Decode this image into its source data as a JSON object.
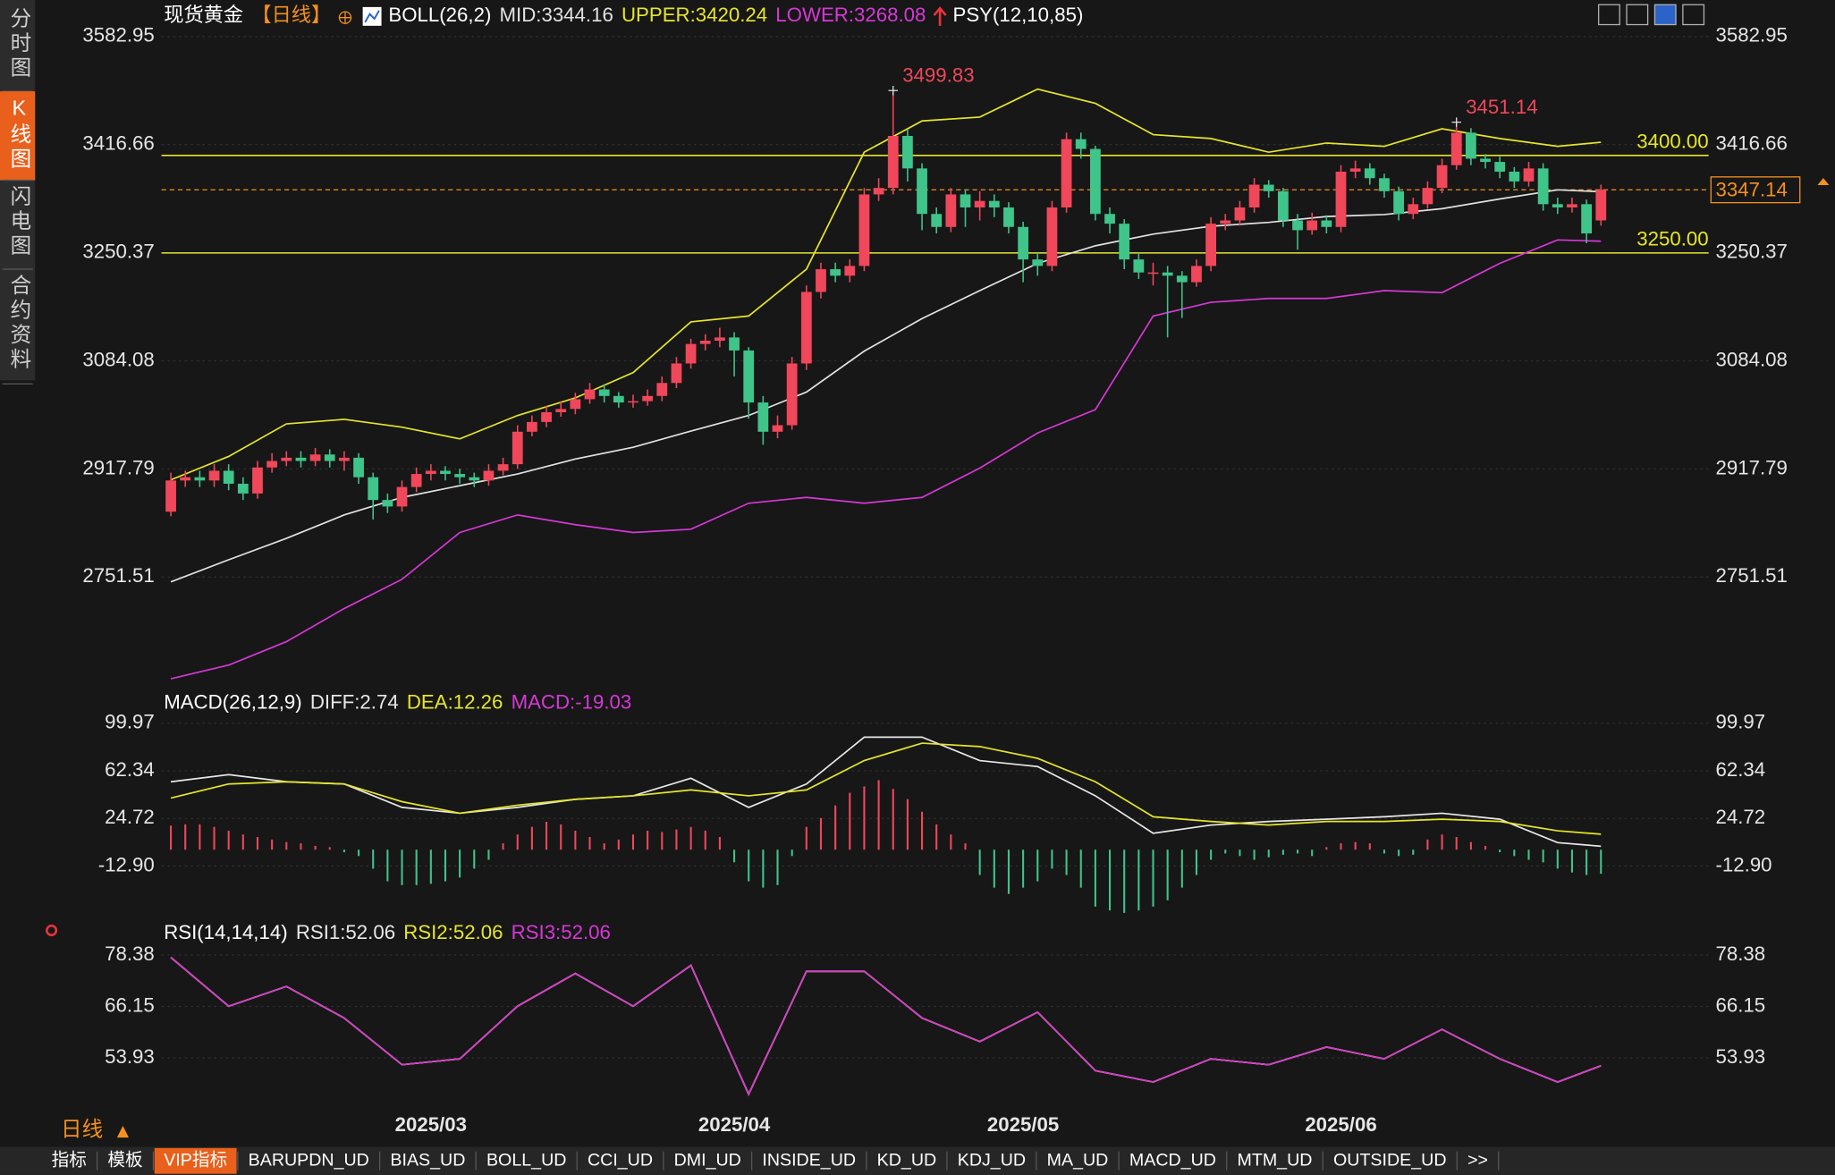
{
  "sidebar": [
    {
      "label": "分时图",
      "active": false
    },
    {
      "label": "K线图",
      "active": true
    },
    {
      "label": "闪电图",
      "active": false
    },
    {
      "label": "合约资料",
      "active": false
    }
  ],
  "period_button": "日线",
  "tabs": [
    {
      "label": "指标",
      "active": false
    },
    {
      "label": "模板",
      "active": false
    },
    {
      "label": "VIP指标",
      "active": true
    },
    {
      "label": "BARUPDN_UD",
      "active": false
    },
    {
      "label": "BIAS_UD",
      "active": false
    },
    {
      "label": "BOLL_UD",
      "active": false
    },
    {
      "label": "CCI_UD",
      "active": false
    },
    {
      "label": "DMI_UD",
      "active": false
    },
    {
      "label": "INSIDE_UD",
      "active": false
    },
    {
      "label": "KD_UD",
      "active": false
    },
    {
      "label": "KDJ_UD",
      "active": false
    },
    {
      "label": "MA_UD",
      "active": false
    },
    {
      "label": "MACD_UD",
      "active": false
    },
    {
      "label": "MTM_UD",
      "active": false
    },
    {
      "label": "OUTSIDE_UD",
      "active": false
    },
    {
      "label": ">>",
      "active": false
    }
  ],
  "chart_data": [
    {
      "type": "candlestick",
      "title": "现货黄金",
      "period": "【日线】",
      "indicator": "BOLL(26,2)",
      "extra_indicator": "PSY(12,10,85)",
      "categories": [
        null,
        null,
        null,
        null,
        null,
        null,
        null,
        null,
        null,
        null,
        null,
        null,
        null,
        null,
        null,
        null,
        null,
        null,
        "2025/03",
        null,
        null,
        null,
        null,
        null,
        null,
        null,
        null,
        null,
        null,
        null,
        null,
        null,
        null,
        null,
        null,
        null,
        null,
        null,
        null,
        "2025/04",
        null,
        null,
        null,
        null,
        null,
        null,
        null,
        null,
        null,
        null,
        null,
        null,
        null,
        null,
        null,
        null,
        null,
        null,
        null,
        "2025/05",
        null,
        null,
        null,
        null,
        null,
        null,
        null,
        null,
        null,
        null,
        null,
        null,
        null,
        null,
        null,
        null,
        null,
        null,
        null,
        null,
        null,
        "2025/06",
        null,
        null,
        null,
        null,
        null,
        null,
        null,
        null,
        null,
        null,
        null,
        null,
        null,
        null,
        null,
        null,
        null,
        null
      ],
      "open": [
        2852,
        2900,
        2905,
        2900,
        2915,
        2895,
        2880,
        2920,
        2930,
        2935,
        2930,
        2940,
        2930,
        2935,
        2905,
        2870,
        2860,
        2890,
        2910,
        2915,
        2910,
        2905,
        2900,
        2915,
        2925,
        2975,
        2990,
        3005,
        3010,
        3025,
        3040,
        3030,
        3020,
        3022,
        3030,
        3050,
        3080,
        3110,
        3115,
        3120,
        3100,
        3020,
        2975,
        2985,
        3080,
        3190,
        3225,
        3215,
        3230,
        3340,
        3350,
        3430,
        3380,
        3310,
        3290,
        3340,
        3320,
        3330,
        3320,
        3290,
        3240,
        3230,
        3320,
        3425,
        3410,
        3310,
        3295,
        3240,
        3220,
        3220,
        3215,
        3205,
        3230,
        3295,
        3300,
        3320,
        3355,
        3345,
        3300,
        3285,
        3300,
        3290,
        3375,
        3380,
        3365,
        3345,
        3310,
        3325,
        3350,
        3385,
        3435,
        3395,
        3390,
        3375,
        3360,
        3380,
        3325,
        3320,
        3325,
        3300
      ],
      "high": [
        2912,
        2915,
        2915,
        2925,
        2925,
        2905,
        2930,
        2942,
        2945,
        2945,
        2950,
        2948,
        2945,
        2942,
        2912,
        2880,
        2900,
        2920,
        2925,
        2922,
        2918,
        2912,
        2925,
        2935,
        2985,
        3000,
        3015,
        3022,
        3035,
        3050,
        3048,
        3036,
        3032,
        3040,
        3060,
        3090,
        3118,
        3125,
        3135,
        3128,
        3105,
        3030,
        3000,
        3090,
        3200,
        3235,
        3235,
        3240,
        3350,
        3365,
        3499.83,
        3440,
        3388,
        3320,
        3350,
        3348,
        3345,
        3340,
        3328,
        3298,
        3250,
        3330,
        3435,
        3435,
        3415,
        3320,
        3302,
        3250,
        3235,
        3230,
        3222,
        3240,
        3305,
        3310,
        3330,
        3365,
        3362,
        3350,
        3310,
        3312,
        3308,
        3385,
        3392,
        3388,
        3372,
        3352,
        3335,
        3360,
        3395,
        3451.14,
        3442,
        3402,
        3398,
        3382,
        3390,
        3388,
        3335,
        3335,
        3332,
        3355
      ],
      "low": [
        2845,
        2890,
        2890,
        2890,
        2885,
        2870,
        2872,
        2912,
        2922,
        2920,
        2922,
        2920,
        2915,
        2895,
        2840,
        2850,
        2852,
        2882,
        2900,
        2900,
        2895,
        2890,
        2892,
        2908,
        2918,
        2968,
        2982,
        2998,
        3002,
        3018,
        3020,
        3012,
        3012,
        3015,
        3022,
        3042,
        3072,
        3100,
        3105,
        3060,
        2995,
        2955,
        2965,
        2978,
        3070,
        3180,
        3205,
        3205,
        3222,
        3330,
        3340,
        3360,
        3285,
        3280,
        3282,
        3290,
        3300,
        3305,
        3280,
        3205,
        3215,
        3222,
        3312,
        3395,
        3300,
        3280,
        3225,
        3210,
        3200,
        3120,
        3150,
        3198,
        3222,
        3285,
        3292,
        3312,
        3335,
        3290,
        3255,
        3278,
        3280,
        3282,
        3365,
        3355,
        3335,
        3300,
        3302,
        3318,
        3342,
        3378,
        3385,
        3380,
        3365,
        3350,
        3352,
        3315,
        3310,
        3312,
        3265,
        3292
      ],
      "close": [
        2900,
        2905,
        2900,
        2915,
        2895,
        2880,
        2920,
        2930,
        2935,
        2930,
        2940,
        2930,
        2935,
        2905,
        2870,
        2860,
        2890,
        2910,
        2915,
        2910,
        2905,
        2900,
        2915,
        2925,
        2975,
        2990,
        3005,
        3010,
        3025,
        3040,
        3030,
        3020,
        3022,
        3030,
        3050,
        3080,
        3110,
        3115,
        3120,
        3100,
        3020,
        2975,
        2985,
        3080,
        3190,
        3225,
        3215,
        3230,
        3340,
        3350,
        3430,
        3380,
        3310,
        3290,
        3340,
        3320,
        3330,
        3320,
        3290,
        3240,
        3230,
        3320,
        3425,
        3410,
        3310,
        3295,
        3240,
        3220,
        3220,
        3215,
        3205,
        3230,
        3295,
        3300,
        3320,
        3355,
        3345,
        3300,
        3285,
        3300,
        3290,
        3375,
        3380,
        3365,
        3345,
        3310,
        3325,
        3350,
        3385,
        3435,
        3395,
        3390,
        3375,
        3360,
        3380,
        3325,
        3320,
        3325,
        3280,
        3347.14
      ],
      "up_color": "#f0475a",
      "down_color": "#3fc48a",
      "series": [
        {
          "name": "MID:3344.16",
          "color": "#e2e2e2",
          "x": [
            0,
            4,
            8,
            12,
            16,
            20,
            24,
            28,
            32,
            36,
            40,
            44,
            48,
            52,
            56,
            60,
            64,
            68,
            72,
            76,
            80,
            84,
            88,
            92,
            96,
            99
          ],
          "values": [
            2744,
            2778,
            2811,
            2847,
            2874,
            2892,
            2910,
            2933,
            2951,
            2976,
            3000,
            3036,
            3099,
            3149,
            3192,
            3234,
            3261,
            3279,
            3291,
            3297,
            3306,
            3309,
            3318,
            3333,
            3347,
            3344.16
          ]
        },
        {
          "name": "UPPER:3420.24",
          "color": "#e6e62a",
          "x": [
            0,
            4,
            8,
            12,
            16,
            20,
            24,
            28,
            32,
            36,
            40,
            44,
            48,
            52,
            56,
            60,
            64,
            68,
            72,
            76,
            80,
            84,
            88,
            92,
            96,
            99
          ],
          "values": [
            2901,
            2937,
            2987,
            2994,
            2982,
            2964,
            3000,
            3027,
            3066,
            3144,
            3153,
            3225,
            3405,
            3453,
            3459,
            3502,
            3480,
            3432,
            3426,
            3405,
            3419,
            3414,
            3441,
            3426,
            3414,
            3420.24
          ]
        },
        {
          "name": "LOWER:3268.08",
          "color": "#d638d6",
          "x": [
            0,
            4,
            8,
            12,
            16,
            20,
            24,
            28,
            32,
            36,
            40,
            44,
            48,
            52,
            56,
            60,
            64,
            68,
            72,
            76,
            80,
            84,
            88,
            92,
            96,
            99
          ],
          "values": [
            2595,
            2616,
            2652,
            2703,
            2748,
            2820,
            2847,
            2832,
            2820,
            2825,
            2865,
            2874,
            2865,
            2874,
            2919,
            2973,
            3009,
            3153,
            3174,
            3180,
            3180,
            3192,
            3189,
            3234,
            3270,
            3268.08
          ]
        }
      ],
      "hlines": [
        {
          "value": 3400,
          "label": "3400.00",
          "color": "#e6e62a"
        },
        {
          "value": 3250,
          "label": "3250.00",
          "color": "#e6e62a"
        }
      ],
      "last_price": 3347.14,
      "last_color": "#f5901f",
      "ylim": [
        2577,
        3603
      ],
      "yticks": [
        3582.95,
        3416.66,
        3250.37,
        3084.08,
        2917.79,
        2751.51
      ],
      "grid": true
    },
    {
      "type": "macd",
      "title": "MACD(26,12,9)",
      "series": [
        {
          "name": "DIFF:2.74",
          "color": "#e8e8e8",
          "x": [
            0,
            4,
            8,
            12,
            16,
            20,
            24,
            28,
            32,
            36,
            40,
            44,
            48,
            52,
            56,
            60,
            64,
            68,
            72,
            76,
            80,
            84,
            88,
            92,
            96,
            99
          ],
          "values": [
            53.7,
            59.3,
            53.7,
            51.9,
            33.4,
            28.8,
            33.4,
            39.8,
            42.6,
            56.5,
            33.4,
            51.9,
            88.9,
            88.9,
            70.4,
            65.7,
            42.6,
            13.0,
            19.5,
            22.3,
            24.1,
            26.0,
            28.8,
            24.1,
            5.6,
            2.74
          ]
        },
        {
          "name": "DEA:12.26",
          "color": "#e6e62a",
          "x": [
            0,
            4,
            8,
            12,
            16,
            20,
            24,
            28,
            32,
            36,
            40,
            44,
            48,
            52,
            56,
            60,
            64,
            68,
            72,
            76,
            80,
            84,
            88,
            92,
            96,
            99
          ],
          "values": [
            40.8,
            51.9,
            53.7,
            51.9,
            38.0,
            28.8,
            35.2,
            39.8,
            42.6,
            47.2,
            42.6,
            47.2,
            70.4,
            84.2,
            81.5,
            72.2,
            53.7,
            26.0,
            22.3,
            19.5,
            22.3,
            22.3,
            24.1,
            22.3,
            14.9,
            12.26
          ]
        }
      ],
      "histogram": {
        "name": "MACD:-19.03",
        "color": "#d638d6",
        "up_color": "#f0475a",
        "down_color": "#3fc48a",
        "values": [
          19,
          20,
          20,
          18,
          15,
          12,
          10,
          8,
          6,
          5,
          3,
          2,
          -2,
          -5,
          -15,
          -25,
          -28,
          -28,
          -27,
          -25,
          -22,
          -15,
          -8,
          5,
          12,
          18,
          22,
          20,
          15,
          10,
          5,
          8,
          12,
          15,
          14,
          16,
          18,
          15,
          10,
          -10,
          -25,
          -30,
          -28,
          -5,
          18,
          25,
          35,
          45,
          50,
          55,
          48,
          40,
          30,
          20,
          12,
          5,
          -20,
          -30,
          -35,
          -30,
          -25,
          -15,
          -20,
          -30,
          -45,
          -48,
          -50,
          -48,
          -45,
          -40,
          -30,
          -20,
          -8,
          -3,
          -5,
          -8,
          -6,
          -4,
          -3,
          -5,
          2,
          5,
          6,
          5,
          -3,
          -5,
          -4,
          8,
          12,
          10,
          6,
          3,
          -2,
          -5,
          -8,
          -10,
          -15,
          -18,
          -20,
          -19.03
        ]
      },
      "ylim": [
        -56.4,
        109.2
      ],
      "yticks": [
        99.97,
        62.34,
        24.72,
        {
          "value": -12.9,
          "label": "-12.90"
        }
      ],
      "grid": true
    },
    {
      "type": "rsi",
      "title": "RSI(14,14,14)",
      "series": [
        {
          "name": "RSI1:52.06",
          "color": "#e8e8e8",
          "x": [
            0,
            4,
            8,
            12,
            16,
            20,
            24,
            28,
            32,
            36,
            40,
            44,
            48,
            52,
            56,
            60,
            64,
            68,
            72,
            76,
            80,
            84,
            88,
            92,
            96,
            99
          ],
          "values": [
            77.8,
            66.2,
            70.9,
            63.4,
            52.3,
            53.7,
            66.2,
            74.0,
            66.2,
            75.9,
            45.3,
            74.5,
            74.5,
            63.4,
            57.8,
            64.8,
            50.9,
            48.2,
            53.7,
            52.3,
            56.5,
            53.7,
            60.7,
            53.7,
            48.2,
            52.06
          ]
        },
        {
          "name": "RSI2:52.06",
          "color": "#e6e62a",
          "x": [
            0,
            4,
            8,
            12,
            16,
            20,
            24,
            28,
            32,
            36,
            40,
            44,
            48,
            52,
            56,
            60,
            64,
            68,
            72,
            76,
            80,
            84,
            88,
            92,
            96,
            99
          ],
          "values": [
            77.8,
            66.2,
            70.9,
            63.4,
            52.3,
            53.7,
            66.2,
            74.0,
            66.2,
            75.9,
            45.3,
            74.5,
            74.5,
            63.4,
            57.8,
            64.8,
            50.9,
            48.2,
            53.7,
            52.3,
            56.5,
            53.7,
            60.7,
            53.7,
            48.2,
            52.06
          ]
        },
        {
          "name": "RSI3:52.06",
          "color": "#d638d6",
          "x": [
            0,
            4,
            8,
            12,
            16,
            20,
            24,
            28,
            32,
            36,
            40,
            44,
            48,
            52,
            56,
            60,
            64,
            68,
            72,
            76,
            80,
            84,
            88,
            92,
            96,
            99
          ],
          "values": [
            77.8,
            66.2,
            70.9,
            63.4,
            52.3,
            53.7,
            66.2,
            74.0,
            66.2,
            75.9,
            45.3,
            74.5,
            74.5,
            63.4,
            57.8,
            64.8,
            50.9,
            48.2,
            53.7,
            52.3,
            56.5,
            53.7,
            60.7,
            53.7,
            48.2,
            52.06
          ]
        }
      ],
      "ylim": [
        42.52,
        81.44
      ],
      "yticks": [
        78.38,
        66.15,
        53.93
      ],
      "grid": true
    }
  ]
}
